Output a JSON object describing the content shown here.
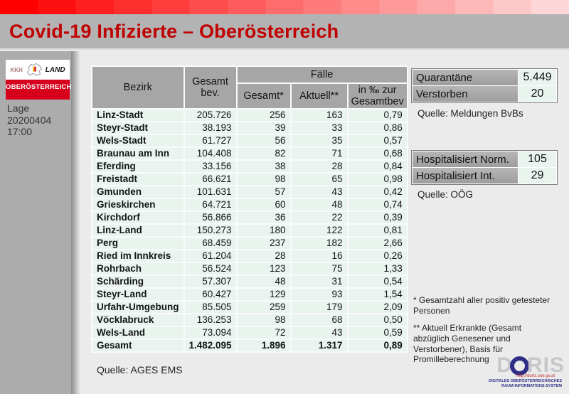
{
  "title": "Covid-19 Infizierte – Oberösterreich",
  "sidebar": {
    "logo_kkh": "KKH",
    "logo_land": "LAND",
    "logo_region": "OBERÖSTERREICH",
    "lage_line1": "Lage 20200404",
    "lage_line2": "17:00"
  },
  "table": {
    "col_bezirk": "Bezirk",
    "col_gesamtbev": "Gesamt bev.",
    "col_faelle": "Fälle",
    "col_gesamt": "Gesamt*",
    "col_aktuell": "Aktuell**",
    "col_promille": "in ‰ zur Gesamtbev",
    "rows": [
      {
        "bezirk": "Linz-Stadt",
        "bev": "205.726",
        "gesamt": "256",
        "aktuell": "163",
        "promille": "0,79"
      },
      {
        "bezirk": "Steyr-Stadt",
        "bev": "38.193",
        "gesamt": "39",
        "aktuell": "33",
        "promille": "0,86"
      },
      {
        "bezirk": "Wels-Stadt",
        "bev": "61.727",
        "gesamt": "56",
        "aktuell": "35",
        "promille": "0,57"
      },
      {
        "bezirk": "Braunau am Inn",
        "bev": "104.408",
        "gesamt": "82",
        "aktuell": "71",
        "promille": "0,68"
      },
      {
        "bezirk": "Eferding",
        "bev": "33.156",
        "gesamt": "38",
        "aktuell": "28",
        "promille": "0,84"
      },
      {
        "bezirk": "Freistadt",
        "bev": "66.621",
        "gesamt": "98",
        "aktuell": "65",
        "promille": "0,98"
      },
      {
        "bezirk": "Gmunden",
        "bev": "101.631",
        "gesamt": "57",
        "aktuell": "43",
        "promille": "0,42"
      },
      {
        "bezirk": "Grieskirchen",
        "bev": "64.721",
        "gesamt": "60",
        "aktuell": "48",
        "promille": "0,74"
      },
      {
        "bezirk": "Kirchdorf",
        "bev": "56.866",
        "gesamt": "36",
        "aktuell": "22",
        "promille": "0,39"
      },
      {
        "bezirk": "Linz-Land",
        "bev": "150.273",
        "gesamt": "180",
        "aktuell": "122",
        "promille": "0,81"
      },
      {
        "bezirk": "Perg",
        "bev": "68.459",
        "gesamt": "237",
        "aktuell": "182",
        "promille": "2,66"
      },
      {
        "bezirk": "Ried im Innkreis",
        "bev": "61.204",
        "gesamt": "28",
        "aktuell": "16",
        "promille": "0,26"
      },
      {
        "bezirk": "Rohrbach",
        "bev": "56.524",
        "gesamt": "123",
        "aktuell": "75",
        "promille": "1,33"
      },
      {
        "bezirk": "Schärding",
        "bev": "57.307",
        "gesamt": "48",
        "aktuell": "31",
        "promille": "0,54"
      },
      {
        "bezirk": "Steyr-Land",
        "bev": "60.427",
        "gesamt": "129",
        "aktuell": "93",
        "promille": "1,54"
      },
      {
        "bezirk": "Urfahr-Umgebung",
        "bev": "85.505",
        "gesamt": "259",
        "aktuell": "179",
        "promille": "2,09"
      },
      {
        "bezirk": "Vöcklabruck",
        "bev": "136.253",
        "gesamt": "98",
        "aktuell": "68",
        "promille": "0,50"
      },
      {
        "bezirk": "Wels-Land",
        "bev": "73.094",
        "gesamt": "72",
        "aktuell": "43",
        "promille": "0,59"
      }
    ],
    "total": {
      "bezirk": "Gesamt",
      "bev": "1.482.095",
      "gesamt": "1.896",
      "aktuell": "1.317",
      "promille": "0,89"
    },
    "source": "Quelle: AGES EMS"
  },
  "panels": [
    {
      "rows": [
        {
          "label": "Quarantäne",
          "value": "5.449"
        },
        {
          "label": "Verstorben",
          "value": "20"
        }
      ],
      "source": "Quelle: Meldungen BvBs"
    },
    {
      "rows": [
        {
          "label": "Hospitalisiert Norm.",
          "value": "105"
        },
        {
          "label": "Hospitalisiert Int.",
          "value": "29"
        }
      ],
      "source": "Quelle: OÖG"
    }
  ],
  "footnotes": [
    "* Gesamtzahl aller positiv getesteter Personen",
    "** Aktuell Erkrankte (Gesamt abzüglich Genesener und Verstorbener), Basis für Promilleberechnung"
  ],
  "doris": {
    "word_d": "D",
    "word_ris": "RIS",
    "url": "http://doris.ooe.gv.at",
    "sub_line1": "DIGITALES OBERÖSTERREICHISCHES",
    "sub_line2": "RAUM-INFORMATIONS-SYSTEM"
  },
  "colors": {
    "accent_red": "#c00000",
    "logo_red": "#d6001c",
    "row_mint": "#eaf4ef",
    "header_gray": "#a6a6a6",
    "doris_navy": "#2e2e86"
  }
}
